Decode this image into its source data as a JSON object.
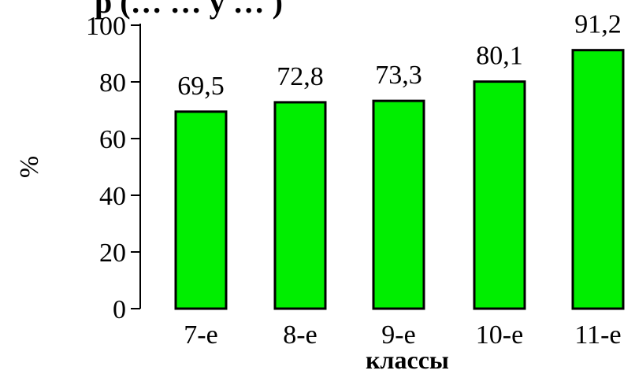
{
  "chart_data": {
    "type": "bar",
    "title_fragment": "р (…   …   у   … )",
    "categories": [
      "7-е",
      "8-е",
      "9-е",
      "10-е",
      "11-е"
    ],
    "values": [
      69.5,
      72.8,
      73.3,
      80.1,
      91.2
    ],
    "value_labels": [
      "69,5",
      "72,8",
      "73,3",
      "80,1",
      "91,2"
    ],
    "ylabel": "%",
    "xlabel": "классы",
    "ylim": [
      0,
      100
    ],
    "yticks": [
      0,
      20,
      40,
      60,
      80,
      100
    ],
    "grid": false,
    "legend": "none",
    "bar_color": "#00ee00",
    "bar_edge_color": "#000000"
  }
}
